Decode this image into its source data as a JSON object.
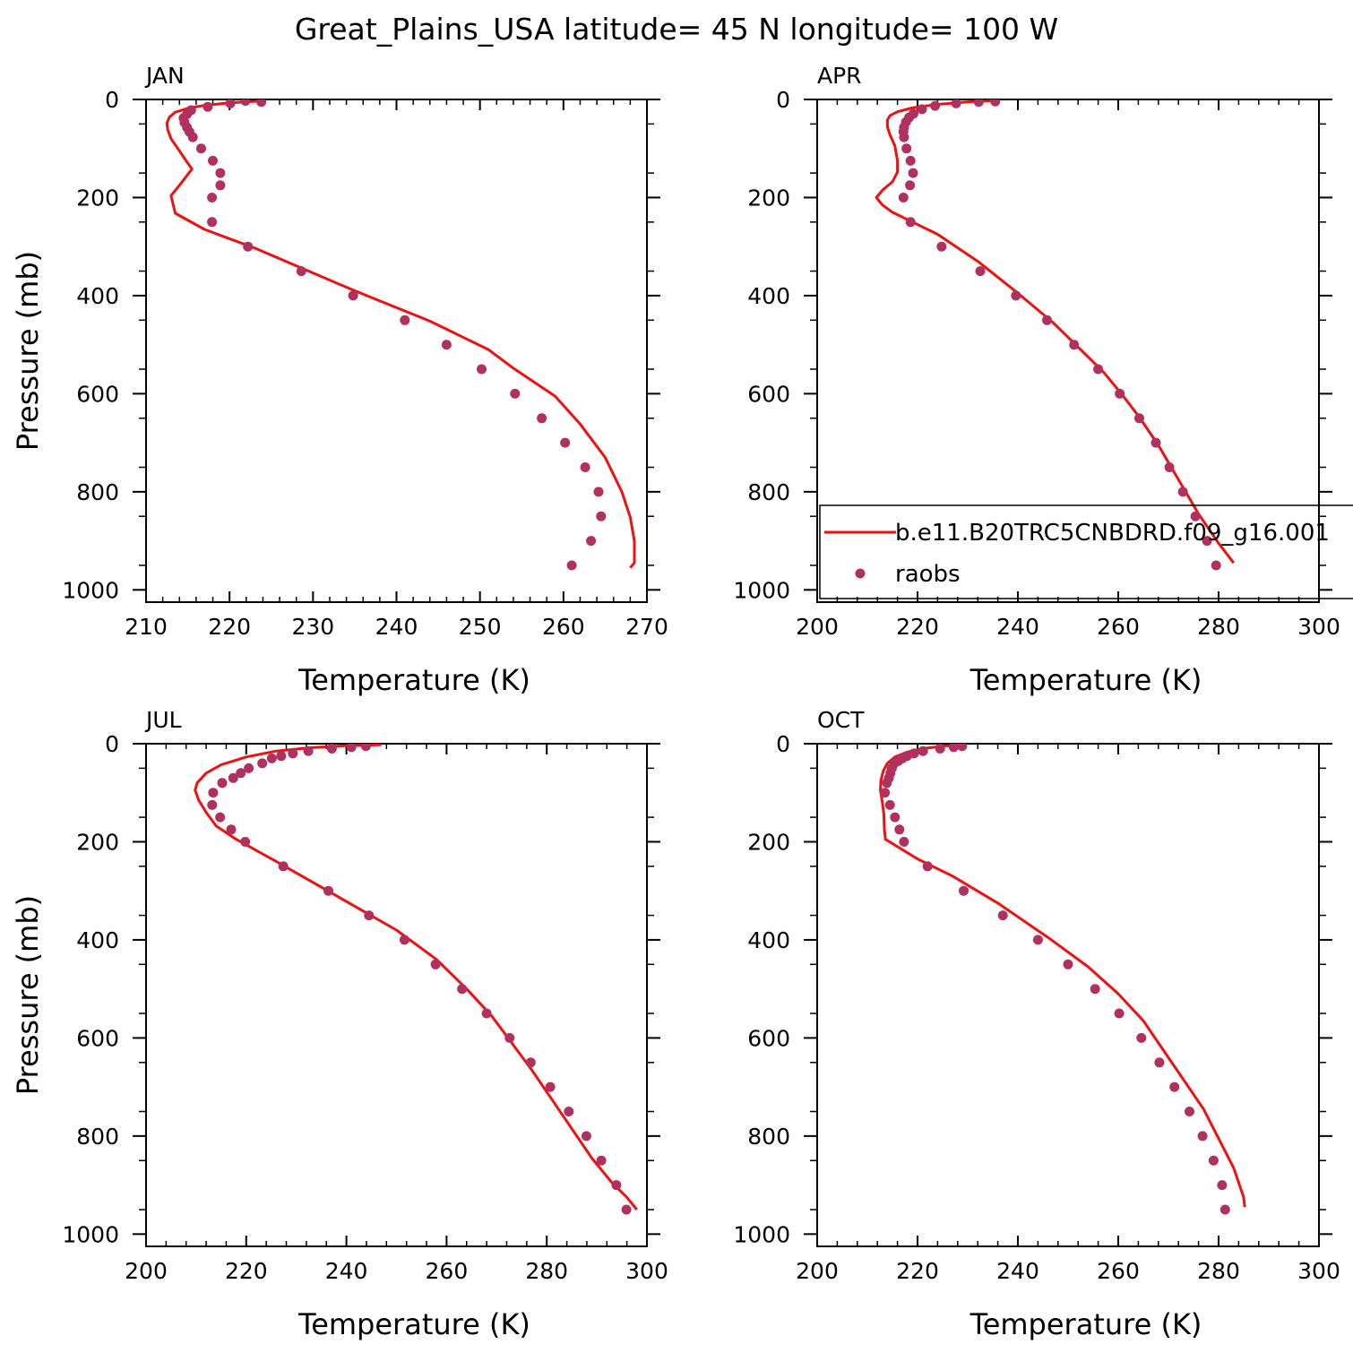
{
  "title": "Great_Plains_USA  latitude= 45 N longitude= 100 W",
  "colors": {
    "model_line": "#ee1111",
    "obs_points": "#b03060",
    "axes": "#000000"
  },
  "legend": {
    "panel": 1,
    "placement": "lower-right",
    "entries": [
      {
        "label": "b.e11.B20TRC5CNBDRD.f09_g16.001",
        "style": "line"
      },
      {
        "label": "raobs",
        "style": "points"
      }
    ]
  },
  "chart_data": [
    {
      "type": "line",
      "title": "JAN",
      "xlabel": "Temperature (K)",
      "ylabel": "Pressure (mb)",
      "xlim": [
        210,
        270
      ],
      "ylim": [
        1025,
        0
      ],
      "xticks": [
        210,
        220,
        230,
        240,
        250,
        260,
        270
      ],
      "yticks": [
        0,
        200,
        400,
        600,
        800,
        1000
      ],
      "grid": false,
      "series": [
        {
          "name": "b.e11.B20TRC5CNBDRD.f09_g16.001",
          "style": "line",
          "points": [
            [
              224,
              3
            ],
            [
              220,
              7
            ],
            [
              217,
              12
            ],
            [
              215,
              18
            ],
            [
              213.5,
              26
            ],
            [
              212.8,
              36
            ],
            [
              212.5,
              48
            ],
            [
              212.6,
              62
            ],
            [
              213,
              80
            ],
            [
              213.8,
              100
            ],
            [
              214.8,
              125
            ],
            [
              215.5,
              142
            ],
            [
              214,
              175
            ],
            [
              213,
              196
            ],
            [
              213.5,
              232
            ],
            [
              217,
              265
            ],
            [
              223,
              303
            ],
            [
              235,
              390
            ],
            [
              244,
              452
            ],
            [
              251,
              510
            ],
            [
              254,
              548
            ],
            [
              259,
              605
            ],
            [
              262,
              662
            ],
            [
              265,
              730
            ],
            [
              267,
              800
            ],
            [
              268,
              852
            ],
            [
              268.5,
              900
            ],
            [
              268.5,
              945
            ],
            [
              268,
              955
            ]
          ]
        },
        {
          "name": "raobs",
          "style": "points",
          "points": [
            [
              223.8,
              5
            ],
            [
              221.9,
              3
            ],
            [
              220.1,
              8
            ],
            [
              217.4,
              15
            ],
            [
              215.4,
              22
            ],
            [
              214.9,
              30
            ],
            [
              214.5,
              38
            ],
            [
              214.6,
              47
            ],
            [
              214.9,
              57
            ],
            [
              215.2,
              66
            ],
            [
              215.6,
              77
            ],
            [
              216.6,
              100
            ],
            [
              218.0,
              125
            ],
            [
              218.9,
              150
            ],
            [
              218.9,
              175
            ],
            [
              217.9,
              200
            ],
            [
              217.9,
              250
            ],
            [
              222.2,
              300
            ],
            [
              228.6,
              350
            ],
            [
              234.8,
              400
            ],
            [
              241.0,
              450
            ],
            [
              246.0,
              500
            ],
            [
              250.2,
              550
            ],
            [
              254.2,
              600
            ],
            [
              257.4,
              650
            ],
            [
              260.2,
              700
            ],
            [
              262.6,
              750
            ],
            [
              264.2,
              800
            ],
            [
              264.5,
              850
            ],
            [
              263.3,
              900
            ],
            [
              261.0,
              950
            ]
          ]
        }
      ]
    },
    {
      "type": "line",
      "title": "APR",
      "xlabel": "Temperature (K)",
      "ylabel": "",
      "xlim": [
        200,
        300
      ],
      "ylim": [
        1025,
        0
      ],
      "xticks": [
        200,
        220,
        240,
        260,
        280,
        300
      ],
      "yticks": [
        0,
        200,
        400,
        600,
        800,
        1000
      ],
      "grid": false,
      "series": [
        {
          "name": "b.e11.B20TRC5CNBDRD.f09_g16.001",
          "style": "line",
          "points": [
            [
              236,
              2
            ],
            [
              230,
              5
            ],
            [
              224,
              10
            ],
            [
              219,
              17
            ],
            [
              216,
              25
            ],
            [
              214.5,
              33
            ],
            [
              214,
              42
            ],
            [
              214,
              56
            ],
            [
              214.5,
              72
            ],
            [
              215.5,
              95
            ],
            [
              216,
              125
            ],
            [
              216,
              148
            ],
            [
              215,
              168
            ],
            [
              213,
              185
            ],
            [
              211.8,
              200
            ],
            [
              213,
              215
            ],
            [
              215,
              230
            ],
            [
              219,
              250
            ],
            [
              224,
              275
            ],
            [
              232,
              330
            ],
            [
              240,
              395
            ],
            [
              247,
              455
            ],
            [
              252,
              505
            ],
            [
              257,
              555
            ],
            [
              261,
              605
            ],
            [
              264,
              645
            ],
            [
              268,
              705
            ],
            [
              272,
              775
            ],
            [
              276,
              845
            ],
            [
              280,
              905
            ],
            [
              283,
              945
            ]
          ]
        },
        {
          "name": "raobs",
          "style": "points",
          "points": [
            [
              235.5,
              4
            ],
            [
              232.2,
              5
            ],
            [
              227.7,
              8
            ],
            [
              223.5,
              13
            ],
            [
              220.9,
              20
            ],
            [
              219.2,
              29
            ],
            [
              218.3,
              37
            ],
            [
              217.7,
              46
            ],
            [
              217.3,
              57
            ],
            [
              217.2,
              66
            ],
            [
              217.3,
              77
            ],
            [
              217.8,
              100
            ],
            [
              218.6,
              125
            ],
            [
              219.1,
              150
            ],
            [
              218.5,
              175
            ],
            [
              217.2,
              200
            ],
            [
              218.6,
              250
            ],
            [
              224.8,
              300
            ],
            [
              232.5,
              350
            ],
            [
              239.6,
              400
            ],
            [
              245.8,
              450
            ],
            [
              251.2,
              500
            ],
            [
              256.0,
              550
            ],
            [
              260.3,
              600
            ],
            [
              264.2,
              650
            ],
            [
              267.5,
              700
            ],
            [
              270.2,
              750
            ],
            [
              272.9,
              800
            ],
            [
              275.4,
              850
            ],
            [
              277.7,
              900
            ],
            [
              279.5,
              950
            ]
          ]
        }
      ]
    },
    {
      "type": "line",
      "title": "JUL",
      "xlabel": "Temperature (K)",
      "ylabel": "Pressure (mb)",
      "xlim": [
        200,
        300
      ],
      "ylim": [
        1025,
        0
      ],
      "xticks": [
        200,
        220,
        240,
        260,
        280,
        300
      ],
      "yticks": [
        0,
        200,
        400,
        600,
        800,
        1000
      ],
      "grid": false,
      "series": [
        {
          "name": "b.e11.B20TRC5CNBDRD.f09_g16.001",
          "style": "line",
          "points": [
            [
              247,
              2
            ],
            [
              240,
              4
            ],
            [
              233,
              8
            ],
            [
              226,
              15
            ],
            [
              220,
              27
            ],
            [
              215,
              43
            ],
            [
              212,
              60
            ],
            [
              210.2,
              80
            ],
            [
              209.8,
              95
            ],
            [
              210.5,
              115
            ],
            [
              212,
              140
            ],
            [
              214,
              168
            ],
            [
              218,
              195
            ],
            [
              226,
              240
            ],
            [
              238,
              310
            ],
            [
              250,
              380
            ],
            [
              258,
              440
            ],
            [
              264,
              500
            ],
            [
              269,
              555
            ],
            [
              273,
              610
            ],
            [
              277,
              665
            ],
            [
              281,
              725
            ],
            [
              285,
              785
            ],
            [
              289,
              845
            ],
            [
              293,
              895
            ],
            [
              296,
              925
            ],
            [
              298,
              950
            ]
          ]
        },
        {
          "name": "raobs",
          "style": "points",
          "points": [
            [
              243.9,
              5
            ],
            [
              241.0,
              7
            ],
            [
              237.1,
              10
            ],
            [
              232.4,
              15
            ],
            [
              229.3,
              20
            ],
            [
              227.0,
              25
            ],
            [
              225.1,
              30
            ],
            [
              223.2,
              40
            ],
            [
              220.5,
              50
            ],
            [
              218.9,
              60
            ],
            [
              217.4,
              70
            ],
            [
              215.2,
              80
            ],
            [
              213.4,
              100
            ],
            [
              213.2,
              125
            ],
            [
              214.8,
              150
            ],
            [
              217.0,
              175
            ],
            [
              219.8,
              200
            ],
            [
              227.4,
              250
            ],
            [
              236.4,
              300
            ],
            [
              244.5,
              350
            ],
            [
              251.6,
              400
            ],
            [
              257.8,
              450
            ],
            [
              263.1,
              500
            ],
            [
              268.0,
              550
            ],
            [
              272.6,
              600
            ],
            [
              276.8,
              650
            ],
            [
              280.7,
              700
            ],
            [
              284.4,
              750
            ],
            [
              287.9,
              800
            ],
            [
              290.9,
              850
            ],
            [
              293.9,
              900
            ],
            [
              295.9,
              950
            ]
          ]
        }
      ]
    },
    {
      "type": "line",
      "title": "OCT",
      "xlabel": "Temperature (K)",
      "ylabel": "",
      "xlim": [
        200,
        300
      ],
      "ylim": [
        1025,
        0
      ],
      "xticks": [
        200,
        220,
        240,
        260,
        280,
        300
      ],
      "yticks": [
        0,
        200,
        400,
        600,
        800,
        1000
      ],
      "grid": false,
      "series": [
        {
          "name": "b.e11.B20TRC5CNBDRD.f09_g16.001",
          "style": "line",
          "points": [
            [
              229,
              2
            ],
            [
              225,
              5
            ],
            [
              221,
              10
            ],
            [
              218,
              17
            ],
            [
              215.5,
              27
            ],
            [
              214,
              40
            ],
            [
              213.2,
              55
            ],
            [
              212.7,
              75
            ],
            [
              212.6,
              95
            ],
            [
              213,
              120
            ],
            [
              213.3,
              145
            ],
            [
              213.4,
              175
            ],
            [
              213.6,
              195
            ],
            [
              216,
              210
            ],
            [
              220,
              235
            ],
            [
              227,
              270
            ],
            [
              236,
              325
            ],
            [
              246,
              395
            ],
            [
              254,
              455
            ],
            [
              260,
              510
            ],
            [
              265,
              565
            ],
            [
              269,
              625
            ],
            [
              273,
              685
            ],
            [
              277,
              745
            ],
            [
              280,
              805
            ],
            [
              283,
              865
            ],
            [
              285,
              925
            ],
            [
              285.2,
              945
            ]
          ]
        },
        {
          "name": "raobs",
          "style": "points",
          "points": [
            [
              228.9,
              5
            ],
            [
              227.2,
              7
            ],
            [
              224.5,
              10
            ],
            [
              221.1,
              15
            ],
            [
              219.3,
              20
            ],
            [
              217.9,
              25
            ],
            [
              217.0,
              30
            ],
            [
              216.2,
              35
            ],
            [
              215.4,
              40
            ],
            [
              214.9,
              50
            ],
            [
              214.6,
              60
            ],
            [
              214.3,
              70
            ],
            [
              213.9,
              80
            ],
            [
              213.5,
              100
            ],
            [
              214.5,
              125
            ],
            [
              215.5,
              150
            ],
            [
              216.4,
              175
            ],
            [
              217.3,
              200
            ],
            [
              222.0,
              250
            ],
            [
              229.2,
              300
            ],
            [
              237.0,
              350
            ],
            [
              244.0,
              400
            ],
            [
              250.0,
              450
            ],
            [
              255.4,
              500
            ],
            [
              260.2,
              550
            ],
            [
              264.6,
              600
            ],
            [
              268.2,
              650
            ],
            [
              271.2,
              700
            ],
            [
              274.2,
              750
            ],
            [
              276.8,
              800
            ],
            [
              279.0,
              850
            ],
            [
              280.7,
              900
            ],
            [
              281.3,
              950
            ]
          ]
        }
      ]
    }
  ]
}
